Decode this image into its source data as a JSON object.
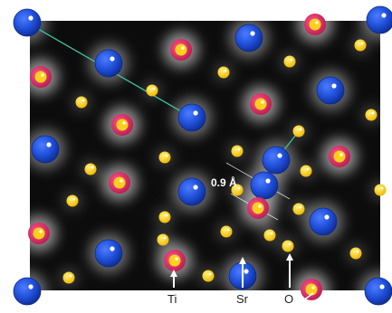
{
  "scale_label": "0.9 Å",
  "labels": {
    "ti": "Ti",
    "sr": "Sr",
    "o": "O"
  },
  "colors": {
    "background": "#0c0c0c",
    "sr": "#1f4fd8",
    "ti_ring": "#d8306a",
    "ti_core": "#ffd01a",
    "o": "#ffd21c",
    "line": "#3fc2a2"
  },
  "icons": {
    "sr_atom": "blue-sphere-icon",
    "ti_atom": "ring-sphere-icon",
    "o_atom": "yellow-dot-icon",
    "arrow": "arrow-up-icon"
  }
}
